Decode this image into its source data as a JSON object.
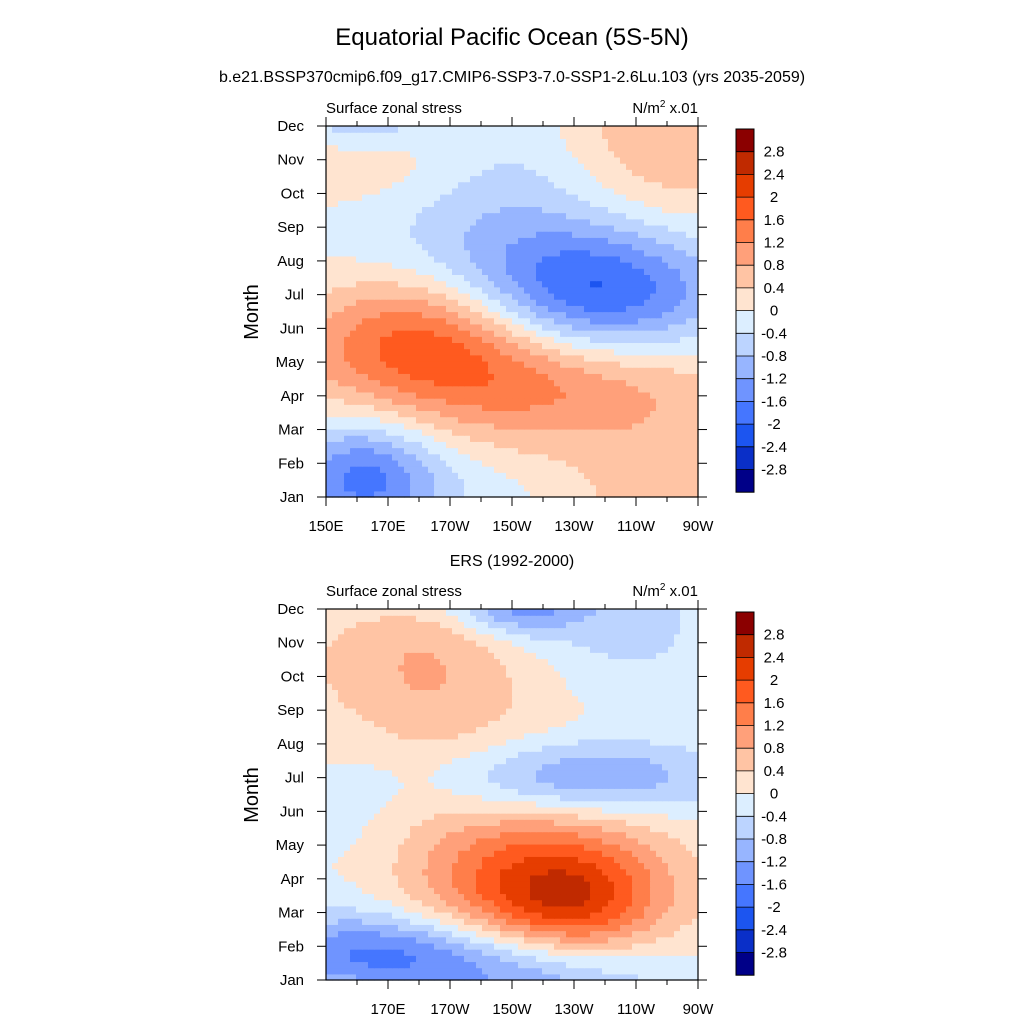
{
  "title": "Equatorial Pacific Ocean (5S-5N)",
  "subtitle": "b.e21.BSSP370cmip6.f09_g17.CMIP6-SSP3-7.0-SSP1-2.6Lu.103 (yrs 2035-2059)",
  "chart_data": [
    {
      "type": "heatmap",
      "panel_title": "",
      "left_label": "Surface zonal stress",
      "right_label": {
        "unit": "N/m",
        "sup": "2",
        "scale": " x.01"
      },
      "ylabel": "Month",
      "y_ticks": [
        "Jan",
        "Feb",
        "Mar",
        "Apr",
        "May",
        "Jun",
        "Jul",
        "Aug",
        "Sep",
        "Oct",
        "Nov",
        "Dec"
      ],
      "x_ticks": [
        "150E",
        "170E",
        "170W",
        "150W",
        "130W",
        "110W",
        "90W"
      ],
      "x_tick_lon": [
        150,
        170,
        190,
        210,
        230,
        250,
        270
      ],
      "xlim_lon": [
        150,
        270
      ],
      "contour_levels": [
        -2.8,
        -2.4,
        -2,
        -1.6,
        -1.2,
        -0.8,
        -0.4,
        0,
        0.4,
        0.8,
        1.2,
        1.6,
        2,
        2.4,
        2.8
      ],
      "features": [
        {
          "lon": 237,
          "month": 6.0,
          "value": -2.3,
          "sx": 30,
          "sy": 1.5
        },
        {
          "lon": 200,
          "month": 9.5,
          "value": -0.8,
          "sx": 35,
          "sy": 2.0
        },
        {
          "lon": 213,
          "month": 3.6,
          "value": 1.6,
          "sx": 45,
          "sy": 1.4
        },
        {
          "lon": 180,
          "month": 5.0,
          "value": 1.2,
          "sx": 25,
          "sy": 1.2
        },
        {
          "lon": 162,
          "month": 0.5,
          "value": -1.8,
          "sx": 18,
          "sy": 1.3
        },
        {
          "lon": 170,
          "month": 10.2,
          "value": 0.9,
          "sx": 25,
          "sy": 1.2
        },
        {
          "lon": 255,
          "month": 10.5,
          "value": 0.9,
          "sx": 25,
          "sy": 2.2
        }
      ]
    },
    {
      "type": "heatmap",
      "panel_title": "ERS (1992-2000)",
      "left_label": "Surface zonal stress",
      "right_label": {
        "unit": "N/m",
        "sup": "2",
        "scale": " x.01"
      },
      "ylabel": "Month",
      "y_ticks": [
        "Jan",
        "Feb",
        "Mar",
        "Apr",
        "May",
        "Jun",
        "Jul",
        "Aug",
        "Sep",
        "Oct",
        "Nov",
        "Dec"
      ],
      "x_ticks": [
        "170E",
        "170W",
        "150W",
        "130W",
        "110W",
        "90W"
      ],
      "x_tick_lon": [
        170,
        190,
        210,
        230,
        250,
        270
      ],
      "xlim_lon": [
        150,
        270
      ],
      "contour_levels": [
        -2.8,
        -2.4,
        -2,
        -1.6,
        -1.2,
        -0.8,
        -0.4,
        0,
        0.4,
        0.8,
        1.2,
        1.6,
        2,
        2.4,
        2.8
      ],
      "features": [
        {
          "lon": 220,
          "month": 2.9,
          "value": 2.0,
          "sx": 28,
          "sy": 1.5
        },
        {
          "lon": 232,
          "month": 2.2,
          "value": 0.8,
          "sx": 18,
          "sy": 1.0
        },
        {
          "lon": 165,
          "month": 0.8,
          "value": -1.6,
          "sx": 30,
          "sy": 0.9
        },
        {
          "lon": 205,
          "month": 0.3,
          "value": -1.0,
          "sx": 30,
          "sy": 0.8
        },
        {
          "lon": 232,
          "month": 6.0,
          "value": -1.4,
          "sx": 32,
          "sy": 0.8
        },
        {
          "lon": 212,
          "month": 11.0,
          "value": -1.2,
          "sx": 14,
          "sy": 0.6
        },
        {
          "lon": 245,
          "month": 10.5,
          "value": -0.6,
          "sx": 22,
          "sy": 1.5
        },
        {
          "lon": 180,
          "month": 9.5,
          "value": 0.7,
          "sx": 25,
          "sy": 2.0
        },
        {
          "lon": 190,
          "month": 7.0,
          "value": 0.25,
          "sx": 40,
          "sy": 2.5
        },
        {
          "lon": 160,
          "month": 5.5,
          "value": -0.3,
          "sx": 12,
          "sy": 2.0
        }
      ]
    }
  ],
  "colorbar": {
    "labels": [
      "2.8",
      "2.4",
      "2",
      "1.6",
      "1.2",
      "0.8",
      "0.4",
      "0",
      "-0.4",
      "-0.8",
      "-1.2",
      "-1.6",
      "-2",
      "-2.4",
      "-2.8"
    ],
    "colors": [
      "#8b0000",
      "#c02a00",
      "#e63d00",
      "#ff5a1f",
      "#ff7e4a",
      "#ffa07a",
      "#ffc4a4",
      "#ffe4d0",
      "#dceeff",
      "#bcd4ff",
      "#97b5ff",
      "#6f94ff",
      "#4576ff",
      "#1c55f0",
      "#0a2fc8",
      "#000088"
    ]
  }
}
